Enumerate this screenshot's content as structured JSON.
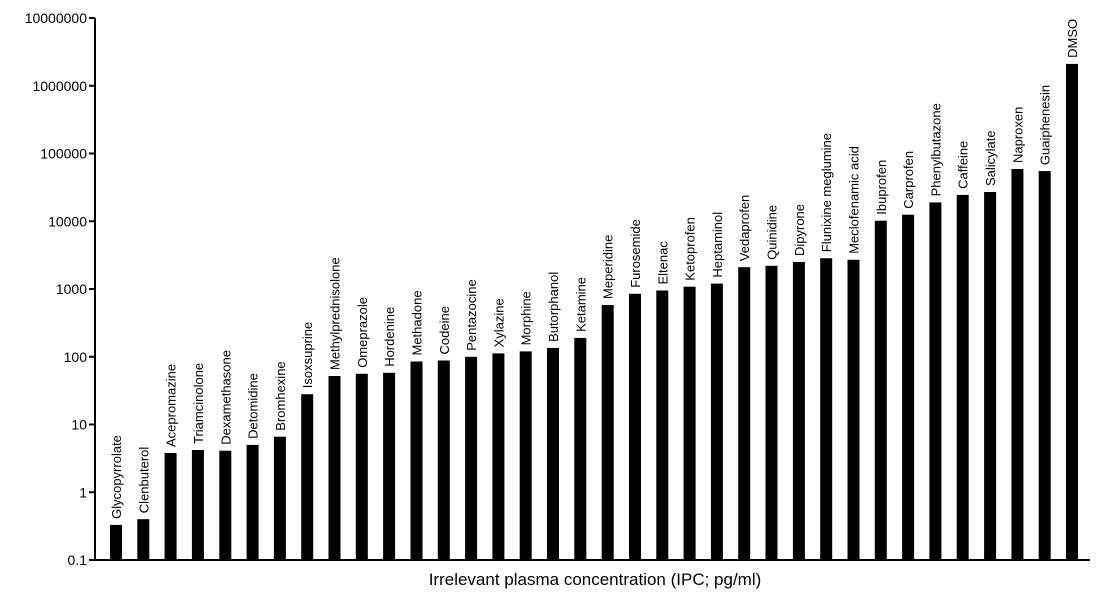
{
  "chart_data": {
    "type": "bar",
    "xlabel": "Irrelevant plasma concentration (IPC; pg/ml)",
    "ylabel": "",
    "yscale": "log",
    "ylim": [
      0.1,
      10000000
    ],
    "yticks": [
      "0.1",
      "1",
      "10",
      "100",
      "1000",
      "10000",
      "100000",
      "1000000",
      "10000000"
    ],
    "grid": false,
    "legend": "none",
    "bar_color": "#000000",
    "categories": [
      "Glycopyrrolate",
      "Clenbuterol",
      "Acepromazine",
      "Triamcinolone",
      "Dexamethasone",
      "Detomidine",
      "Bromhexine",
      "Isoxsuprine",
      "Methylprednisolone",
      "Omeprazole",
      "Hordenine",
      "Methadone",
      "Codeine",
      "Pentazocine",
      "Xylazine",
      "Morphine",
      "Butorphanol",
      "Ketamine",
      "Meperidine",
      "Furosemide",
      "Eltenac",
      "Ketoprofen",
      "Heptaminol",
      "Vedaprofen",
      "Quinidine",
      "Dipyrone",
      "Flunixine meglumine",
      "Meclofenamic acid",
      "Ibuprofen",
      "Carprofen",
      "Phenylbutazone",
      "Caffeine",
      "Salicylate",
      "Naproxen",
      "Guaiphenesin",
      "DMSO"
    ],
    "values": [
      0.33,
      0.4,
      3.8,
      4.2,
      4.1,
      5.0,
      6.6,
      28,
      52,
      56,
      58,
      85,
      88,
      100,
      112,
      120,
      135,
      190,
      580,
      850,
      950,
      1080,
      1200,
      2100,
      2200,
      2500,
      2850,
      2700,
      10200,
      12500,
      19000,
      24500,
      27000,
      59000,
      55000,
      2100000
    ]
  }
}
